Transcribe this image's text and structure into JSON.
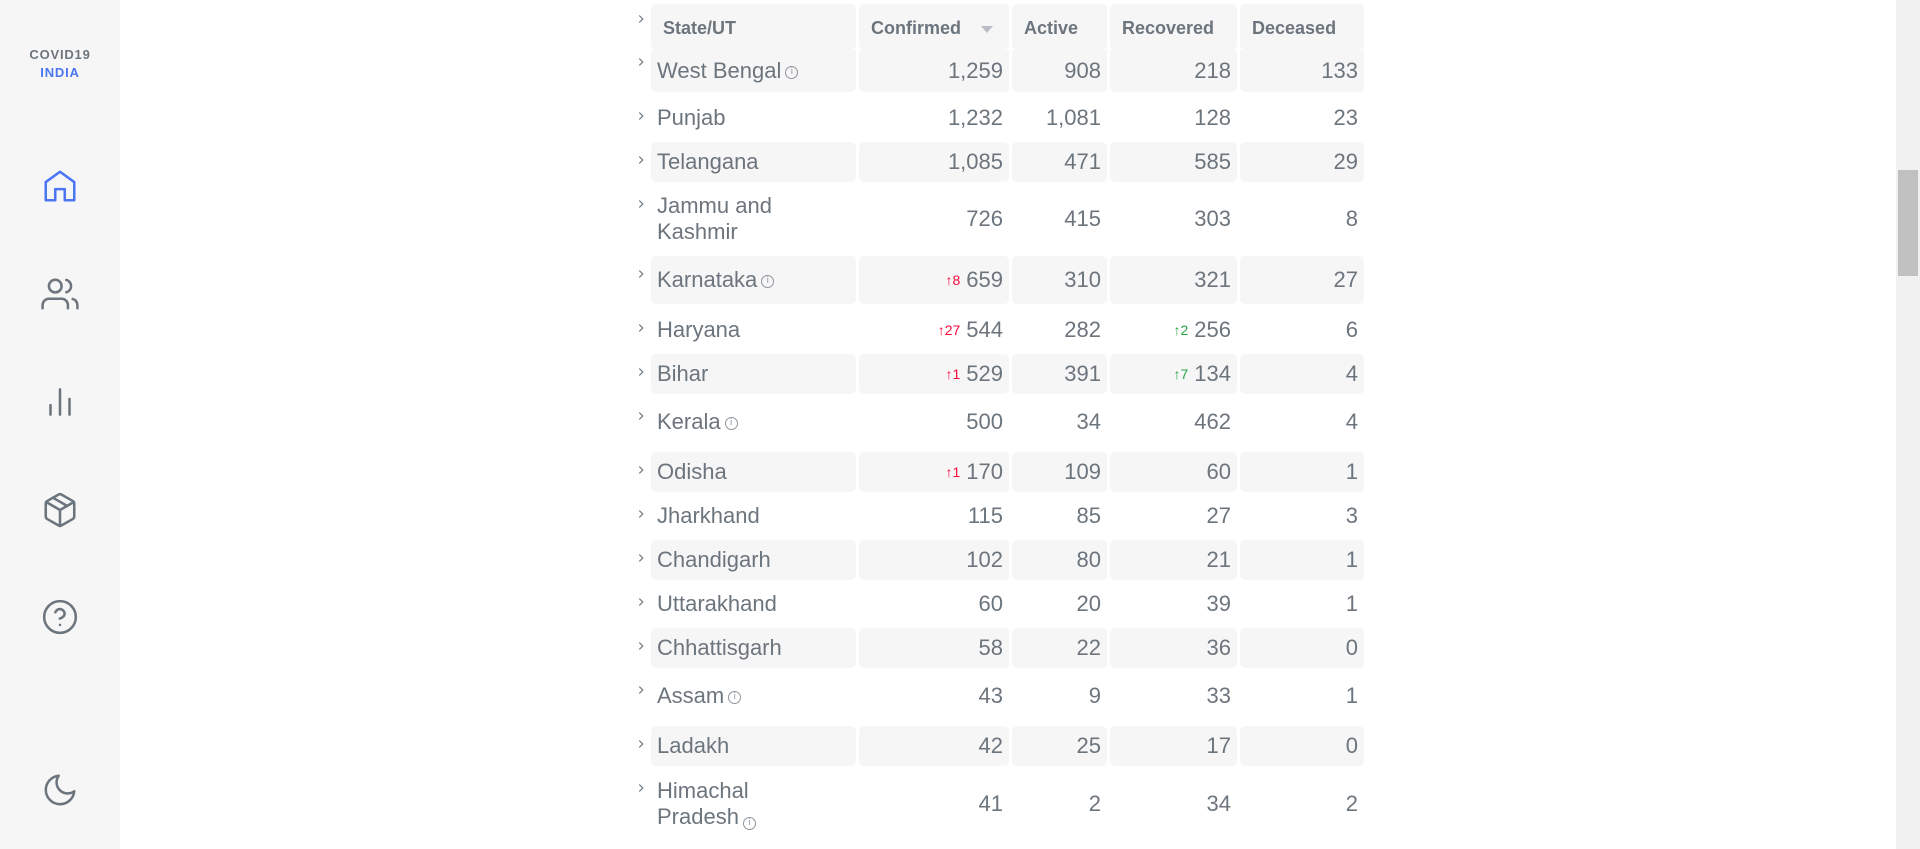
{
  "sidebar": {
    "logo_line1": "COVID19",
    "logo_line2": "INDIA",
    "nav": [
      {
        "name": "home-icon"
      },
      {
        "name": "people-icon"
      },
      {
        "name": "bar-chart-icon"
      },
      {
        "name": "package-icon"
      },
      {
        "name": "help-icon"
      },
      {
        "name": "moon-icon"
      }
    ],
    "accent_color": "#4c75f2"
  },
  "table": {
    "headers": {
      "state": "State/UT",
      "confirmed": "Confirmed",
      "active": "Active",
      "recovered": "Recovered",
      "deceased": "Deceased"
    },
    "rows": [
      {
        "state": "West Bengal",
        "info": true,
        "confirmed": "1,259",
        "active": "908",
        "recovered": "218",
        "deceased": "133"
      },
      {
        "state": "Punjab",
        "confirmed": "1,232",
        "active": "1,081",
        "recovered": "128",
        "deceased": "23"
      },
      {
        "state": "Telangana",
        "confirmed": "1,085",
        "active": "471",
        "recovered": "585",
        "deceased": "29"
      },
      {
        "state": "Jammu and Kashmir",
        "state_line1": "Jammu and",
        "state_line2": "Kashmir",
        "confirmed": "726",
        "active": "415",
        "recovered": "303",
        "deceased": "8"
      },
      {
        "state": "Karnataka",
        "info": true,
        "confirmed_delta": "↑8",
        "confirmed": "659",
        "active": "310",
        "recovered": "321",
        "deceased": "27"
      },
      {
        "state": "Haryana",
        "confirmed_delta": "↑27",
        "confirmed": "544",
        "active": "282",
        "recovered_delta": "↑2",
        "recovered": "256",
        "deceased": "6"
      },
      {
        "state": "Bihar",
        "confirmed_delta": "↑1",
        "confirmed": "529",
        "active": "391",
        "recovered_delta": "↑7",
        "recovered": "134",
        "deceased": "4"
      },
      {
        "state": "Kerala",
        "info": true,
        "confirmed": "500",
        "active": "34",
        "recovered": "462",
        "deceased": "4"
      },
      {
        "state": "Odisha",
        "confirmed_delta": "↑1",
        "confirmed": "170",
        "active": "109",
        "recovered": "60",
        "deceased": "1"
      },
      {
        "state": "Jharkhand",
        "confirmed": "115",
        "active": "85",
        "recovered": "27",
        "deceased": "3"
      },
      {
        "state": "Chandigarh",
        "confirmed": "102",
        "active": "80",
        "recovered": "21",
        "deceased": "1"
      },
      {
        "state": "Uttarakhand",
        "confirmed": "60",
        "active": "20",
        "recovered": "39",
        "deceased": "1"
      },
      {
        "state": "Chhattisgarh",
        "confirmed": "58",
        "active": "22",
        "recovered": "36",
        "deceased": "0"
      },
      {
        "state": "Assam",
        "info": true,
        "confirmed": "43",
        "active": "9",
        "recovered": "33",
        "deceased": "1"
      },
      {
        "state": "Ladakh",
        "confirmed": "42",
        "active": "25",
        "recovered": "17",
        "deceased": "0"
      },
      {
        "state": "Himachal Pradesh",
        "state_line1": "Himachal",
        "state_line2": "Pradesh",
        "info": true,
        "confirmed": "41",
        "active": "2",
        "recovered": "34",
        "deceased": "2"
      }
    ],
    "delta_colors": {
      "confirmed": "#ff073a",
      "recovered": "#28a745"
    }
  }
}
